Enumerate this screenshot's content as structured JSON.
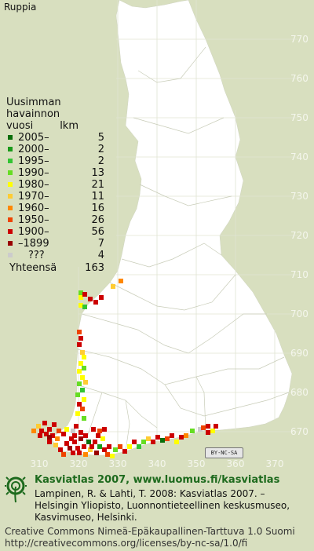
{
  "species": "Ruppia",
  "legend": {
    "heading": [
      "Uusimman",
      "havainnon"
    ],
    "col_year": "vuosi",
    "col_count": "lkm",
    "rows": [
      {
        "label": "2005–",
        "count": "5",
        "color": "#0a6e0a"
      },
      {
        "label": "2000–",
        "count": "2",
        "color": "#1a9a1a"
      },
      {
        "label": "1995–",
        "count": "2",
        "color": "#33c433"
      },
      {
        "label": "1990–",
        "count": "13",
        "color": "#66dd22"
      },
      {
        "label": "1980–",
        "count": "21",
        "color": "#ffff00"
      },
      {
        "label": "1970–",
        "count": "11",
        "color": "#ffcc33"
      },
      {
        "label": "1960–",
        "count": "16",
        "color": "#ff8800"
      },
      {
        "label": "1950–",
        "count": "26",
        "color": "#ee4400"
      },
      {
        "label": "1900–",
        "count": "56",
        "color": "#cc0000"
      },
      {
        "label": "–1899",
        "count": "7",
        "color": "#990000"
      },
      {
        "label": "???",
        "count": "4",
        "color": "#cccccc"
      }
    ],
    "total_label": "Yhteensä",
    "total_count": "163"
  },
  "map": {
    "y_ticks": [
      "770",
      "760",
      "750",
      "740",
      "730",
      "720",
      "710",
      "700",
      "690",
      "680",
      "670"
    ],
    "x_ticks": [
      "310",
      "320",
      "330",
      "340",
      "350",
      "360",
      "370"
    ],
    "land_color": "#ffffff",
    "background_color": "#d8dfbf",
    "grid_color": "#e0e4d2",
    "cc_badge": "BY-NC-SA"
  },
  "footer": {
    "title": "Kasviatlas 2007, www.luomus.fi/kasviatlas",
    "citation": [
      "Lampinen, R. & Lahti, T. 2008: Kasviatlas 2007. –",
      "Helsingin Yliopisto, Luonnontieteellinen keskusmuseo,",
      "Kasvimuseo, Helsinki."
    ],
    "license": [
      "Creative Commons Nimeä-Epäkaupallinen-Tarttuva 1.0 Suomi",
      "http://creativecommons.org/licenses/by-nc-sa/1.0/fi"
    ]
  }
}
